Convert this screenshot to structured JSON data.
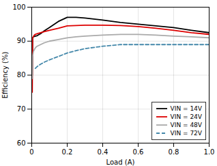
{
  "chart_data": {
    "type": "line",
    "xlabel": "Load (A)",
    "ylabel": "Efficiency (%)",
    "xlim": [
      0,
      1.0
    ],
    "ylim": [
      60,
      100
    ],
    "xticks": [
      0,
      0.2,
      0.4,
      0.6,
      0.8,
      {
        "value": 1.0,
        "label": "1.0"
      }
    ],
    "yticks": [
      60,
      70,
      80,
      90,
      100
    ],
    "grid": true,
    "legend": "lower right",
    "series": [
      {
        "name": "VIN = 14V",
        "color": "#000000",
        "line_style": "solid",
        "x": [
          0.003,
          0.005,
          0.008,
          0.01,
          0.015,
          0.02,
          0.03,
          0.05,
          0.07,
          0.1,
          0.15,
          0.2,
          0.25,
          0.3,
          0.35,
          0.4,
          0.5,
          0.6,
          0.7,
          0.8,
          0.9,
          1.0
        ],
        "values": [
          80,
          91,
          91.2,
          91.3,
          91.4,
          91.5,
          91.6,
          92.2,
          93.0,
          94.0,
          95.8,
          97.0,
          97.0,
          96.8,
          96.5,
          96.2,
          95.5,
          95.0,
          94.5,
          94.0,
          93.2,
          92.5
        ]
      },
      {
        "name": "VIN = 24V",
        "color": "#dd0000",
        "line_style": "solid",
        "x": [
          0.003,
          0.005,
          0.008,
          0.01,
          0.015,
          0.02,
          0.03,
          0.05,
          0.07,
          0.1,
          0.15,
          0.2,
          0.25,
          0.3,
          0.35,
          0.4,
          0.5,
          0.6,
          0.7,
          0.8,
          0.9,
          1.0
        ],
        "values": [
          75,
          91.0,
          91.2,
          91.4,
          91.8,
          92.0,
          92.2,
          92.5,
          92.8,
          93.2,
          93.8,
          94.5,
          94.6,
          94.7,
          94.7,
          94.7,
          94.6,
          94.3,
          93.8,
          93.2,
          92.5,
          92.0
        ]
      },
      {
        "name": "VIN = 48V",
        "color": "#aaaaaa",
        "line_style": "solid",
        "x": [
          0.003,
          0.005,
          0.008,
          0.01,
          0.015,
          0.02,
          0.03,
          0.05,
          0.07,
          0.1,
          0.15,
          0.2,
          0.25,
          0.3,
          0.4,
          0.5,
          0.6,
          0.7,
          0.8,
          0.9,
          1.0
        ],
        "values": [
          79,
          85.5,
          86.5,
          87.0,
          87.5,
          88.0,
          88.5,
          89.0,
          89.5,
          90.0,
          90.5,
          91.0,
          91.3,
          91.5,
          91.8,
          92.0,
          92.0,
          91.8,
          91.5,
          91.3,
          91.0
        ]
      },
      {
        "name": "VIN = 72V",
        "color": "#4488aa",
        "line_style": "dashed",
        "x": [
          0.02,
          0.03,
          0.05,
          0.07,
          0.1,
          0.15,
          0.2,
          0.25,
          0.3,
          0.4,
          0.5,
          0.6,
          0.7,
          0.8,
          0.9,
          1.0
        ],
        "values": [
          82.0,
          82.5,
          83.2,
          83.8,
          84.5,
          85.5,
          86.5,
          87.2,
          87.8,
          88.5,
          89.0,
          89.0,
          89.0,
          89.0,
          89.0,
          89.0
        ]
      }
    ]
  }
}
